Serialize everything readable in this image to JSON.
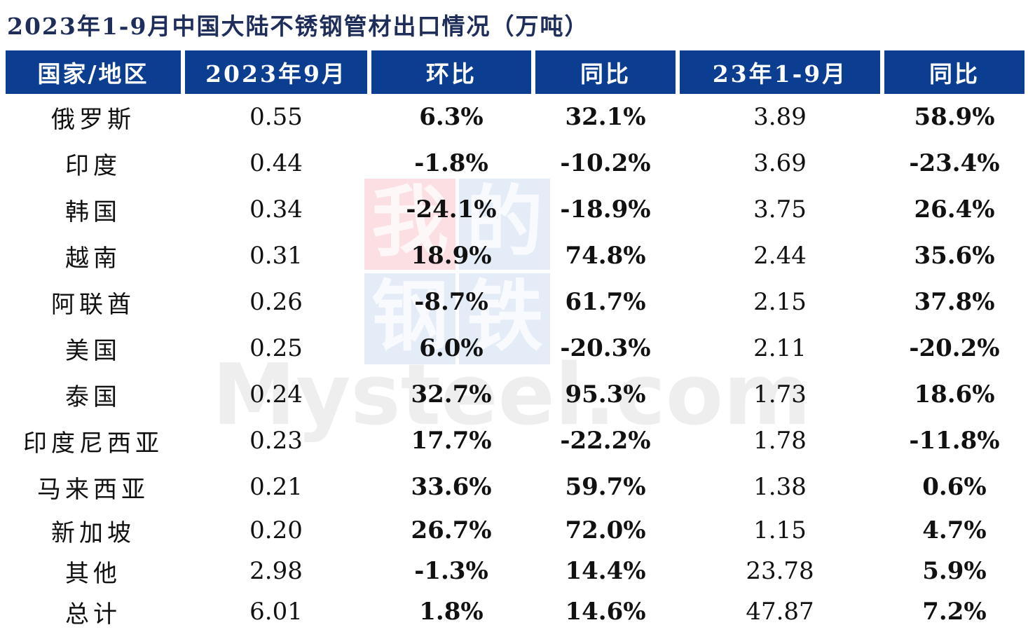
{
  "title": "2023年1-9月中国大陆不锈钢管材出口情况（万吨）",
  "colors": {
    "header_bg": "#0b3d91",
    "header_text": "#ffffff",
    "positive": "#ee1c25",
    "negative": "#19a35a",
    "title": "#1f2d5a"
  },
  "watermark": {
    "cn_1": "我",
    "cn_2": "的",
    "cn_3": "钢",
    "cn_4": "铁",
    "en": "Mysteel.com"
  },
  "chart_data": {
    "type": "table",
    "title": "2023年1-9月中国大陆不锈钢管材出口情况（万吨）",
    "columns": [
      "国家/地区",
      "2023年9月",
      "环比",
      "同比",
      "23年1-9月",
      "同比"
    ],
    "rows": [
      {
        "country": "俄罗斯",
        "sep_2023": "0.55",
        "mom": "6.3%",
        "yoy": "32.1%",
        "ytd": "3.89",
        "ytd_yoy": "58.9%"
      },
      {
        "country": "印度",
        "sep_2023": "0.44",
        "mom": "-1.8%",
        "yoy": "-10.2%",
        "ytd": "3.69",
        "ytd_yoy": "-23.4%"
      },
      {
        "country": "韩国",
        "sep_2023": "0.34",
        "mom": "-24.1%",
        "yoy": "-18.9%",
        "ytd": "3.75",
        "ytd_yoy": "26.4%"
      },
      {
        "country": "越南",
        "sep_2023": "0.31",
        "mom": "18.9%",
        "yoy": "74.8%",
        "ytd": "2.44",
        "ytd_yoy": "35.6%"
      },
      {
        "country": "阿联酋",
        "sep_2023": "0.26",
        "mom": "-8.7%",
        "yoy": "61.7%",
        "ytd": "2.15",
        "ytd_yoy": "37.8%"
      },
      {
        "country": "美国",
        "sep_2023": "0.25",
        "mom": "6.0%",
        "yoy": "-20.3%",
        "ytd": "2.11",
        "ytd_yoy": "-20.2%"
      },
      {
        "country": "泰国",
        "sep_2023": "0.24",
        "mom": "32.7%",
        "yoy": "95.3%",
        "ytd": "1.73",
        "ytd_yoy": "18.6%"
      },
      {
        "country": "印度尼西亚",
        "sep_2023": "0.23",
        "mom": "17.7%",
        "yoy": "-22.2%",
        "ytd": "1.78",
        "ytd_yoy": "-11.8%"
      },
      {
        "country": "马来西亚",
        "sep_2023": "0.21",
        "mom": "33.6%",
        "yoy": "59.7%",
        "ytd": "1.38",
        "ytd_yoy": "0.6%"
      },
      {
        "country": "新加坡",
        "sep_2023": "0.20",
        "mom": "26.7%",
        "yoy": "72.0%",
        "ytd": "1.15",
        "ytd_yoy": "4.7%"
      },
      {
        "country": "其他",
        "sep_2023": "2.98",
        "mom": "-1.3%",
        "yoy": "14.4%",
        "ytd": "23.78",
        "ytd_yoy": "5.9%"
      },
      {
        "country": "总计",
        "sep_2023": "6.01",
        "mom": "1.8%",
        "yoy": "14.6%",
        "ytd": "47.87",
        "ytd_yoy": "7.2%"
      }
    ]
  }
}
